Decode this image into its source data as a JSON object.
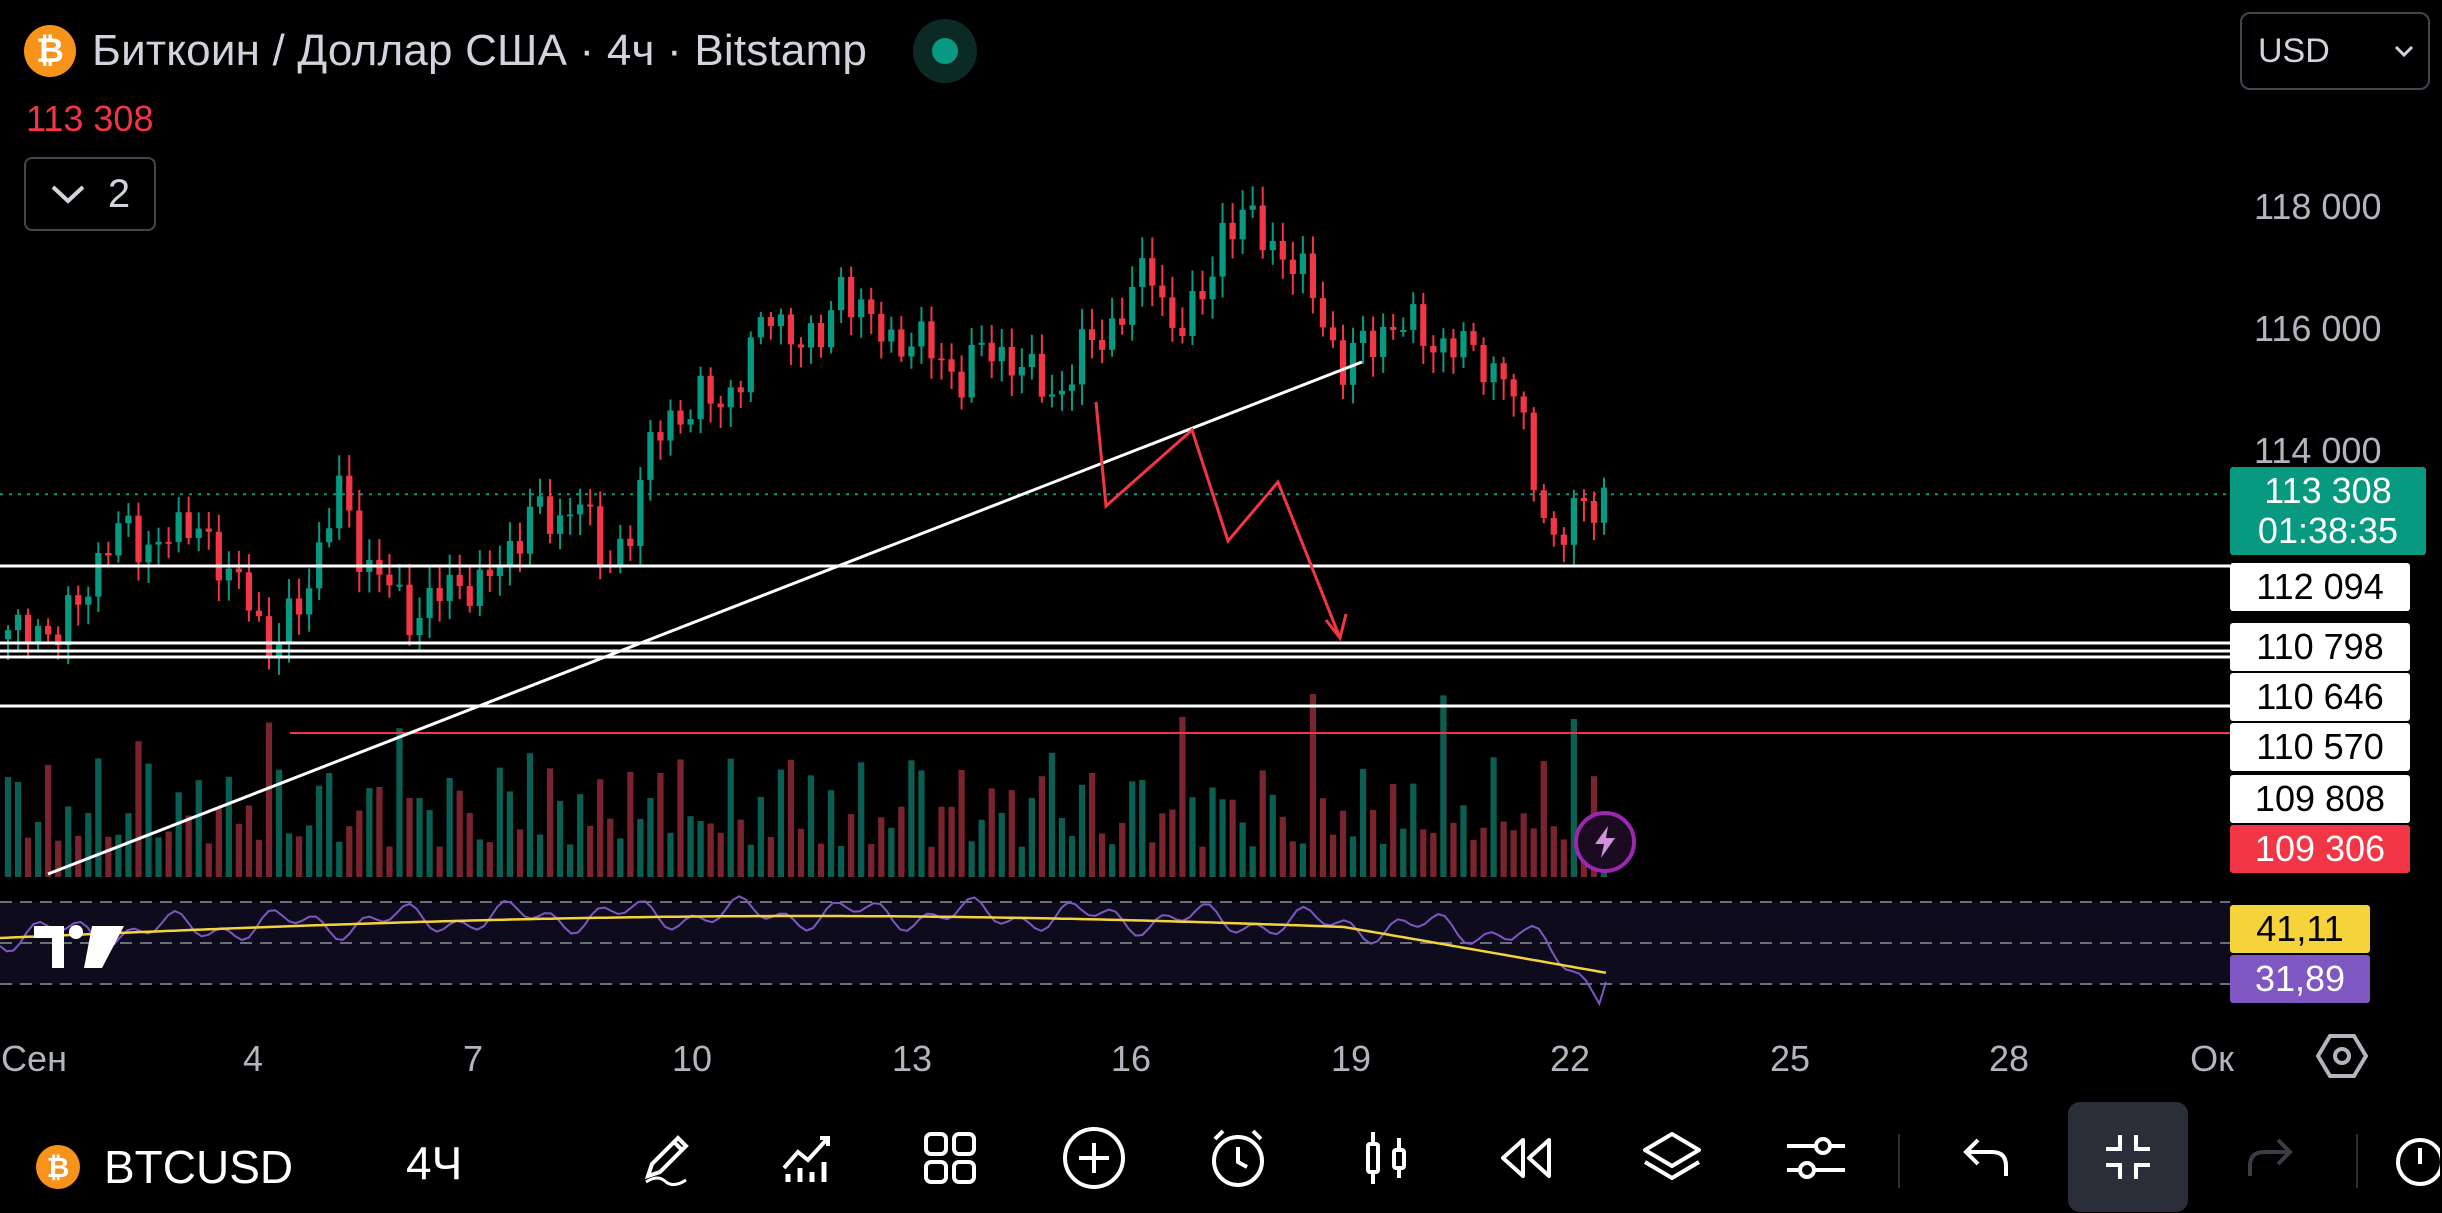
{
  "header": {
    "title": "Биткоин / Доллар США · 4ч · Bitstamp",
    "coin_glyph": "₿",
    "last_price": "113 308",
    "collapse_count": "2",
    "currency": "USD"
  },
  "chart_data": {
    "type": "candlestick",
    "symbol": "BTCUSD",
    "timeframe": "4Ч",
    "exchange": "Bitstamp",
    "price_axis": [
      "118 000",
      "116 000",
      "114 000"
    ],
    "price_range": [
      108400,
      118700
    ],
    "x_axis": [
      "Сен",
      "4",
      "7",
      "10",
      "13",
      "16",
      "19",
      "22",
      "25",
      "28",
      "Ок"
    ],
    "candles_close_path": [
      110900,
      111300,
      110800,
      111700,
      112300,
      112800,
      112400,
      112600,
      113000,
      111800,
      112000,
      110500,
      111500,
      112200,
      113500,
      112100,
      111800,
      111300,
      111600,
      111900,
      111800,
      112300,
      113200,
      112600,
      113500,
      111900,
      112700,
      114100,
      114600,
      114900,
      114700,
      115600,
      116200,
      116000,
      115600,
      116900,
      116100,
      115900,
      115800,
      115600,
      115200,
      115700,
      115600,
      115200,
      114900,
      115600,
      115900,
      116500,
      117000,
      116000,
      116300,
      117700,
      117800,
      117500,
      117000,
      116500,
      115300,
      115800,
      116100,
      116000,
      115800,
      115700,
      115500,
      115200,
      113700,
      112400,
      113100,
      113308
    ],
    "current_price": "113 308",
    "countdown": "01:38:35",
    "horizontal_levels": [
      "112 094",
      "110 798",
      "110 646",
      "110 570",
      "109 808"
    ],
    "red_level": "109 306",
    "indicator": {
      "name": "RSI",
      "values": [
        "41,11",
        "31,89"
      ],
      "colors": {
        "rsi": "#7e57c2",
        "ma": "#f5d33a"
      }
    },
    "colors": {
      "up": "#089981",
      "down": "#f23645",
      "background": "#000000"
    }
  },
  "toolbar": {
    "symbol": "BTCUSD",
    "timeframe": "4Ч",
    "icons": [
      "draw-icon",
      "indicators-icon",
      "layouts-icon",
      "add-icon",
      "alert-icon",
      "bar-style-icon",
      "replay-icon",
      "layers-icon",
      "settings-sliders-icon",
      "undo-icon",
      "fullscreen-exit-icon",
      "redo-icon"
    ]
  }
}
